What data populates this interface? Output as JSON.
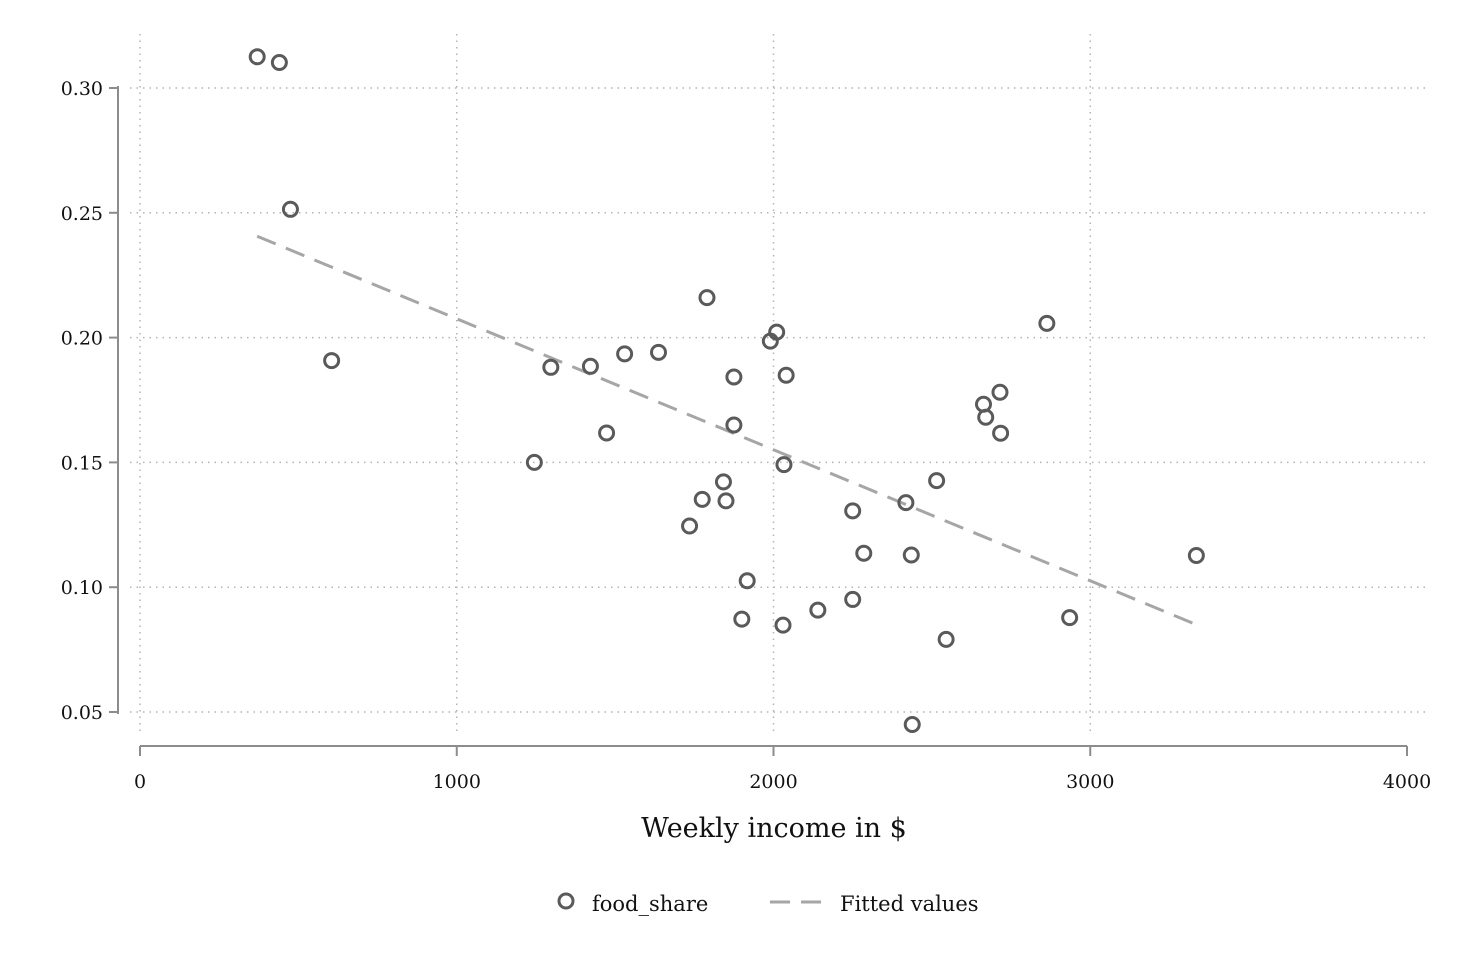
{
  "chart_data": {
    "type": "scatter",
    "title": "",
    "xlabel": "Weekly income in $",
    "ylabel": "",
    "xlim": [
      0,
      4000
    ],
    "ylim": [
      0.035,
      0.32
    ],
    "x_ticks": [
      0,
      1000,
      2000,
      3000,
      4000
    ],
    "x_tick_labels": [
      "0",
      "1000",
      "2000",
      "3000",
      "4000"
    ],
    "y_ticks": [
      0.05,
      0.1,
      0.15,
      0.2,
      0.25,
      0.3
    ],
    "y_tick_labels": [
      "0.05",
      "0.10",
      "0.15",
      "0.20",
      "0.25",
      "0.30"
    ],
    "grid": true,
    "legend_position": "bottom",
    "colors": {
      "points": "#5a5a5a",
      "fitted": "#a6a6a6",
      "axis": "#8c8c8c",
      "grid": "#b4b4b4"
    },
    "series": [
      {
        "name": "food_share",
        "kind": "scatter",
        "points": [
          [
            370,
            0.3125
          ],
          [
            440,
            0.3102
          ],
          [
            475,
            0.2514
          ],
          [
            605,
            0.1908
          ],
          [
            1245,
            0.15
          ],
          [
            1297,
            0.1881
          ],
          [
            1422,
            0.1885
          ],
          [
            1473,
            0.1618
          ],
          [
            1530,
            0.1935
          ],
          [
            1637,
            0.1941
          ],
          [
            1735,
            0.1245
          ],
          [
            1775,
            0.1352
          ],
          [
            1790,
            0.216
          ],
          [
            1842,
            0.1422
          ],
          [
            1850,
            0.1346
          ],
          [
            1875,
            0.1842
          ],
          [
            1875,
            0.165
          ],
          [
            1900,
            0.0872
          ],
          [
            1917,
            0.1026
          ],
          [
            1990,
            0.1986
          ],
          [
            2010,
            0.2022
          ],
          [
            2030,
            0.0848
          ],
          [
            2033,
            0.1491
          ],
          [
            2040,
            0.1849
          ],
          [
            2140,
            0.0908
          ],
          [
            2250,
            0.0951
          ],
          [
            2250,
            0.1306
          ],
          [
            2285,
            0.1136
          ],
          [
            2418,
            0.1339
          ],
          [
            2435,
            0.1129
          ],
          [
            2438,
            0.045
          ],
          [
            2515,
            0.1427
          ],
          [
            2545,
            0.0791
          ],
          [
            2663,
            0.1733
          ],
          [
            2670,
            0.1681
          ],
          [
            2715,
            0.1781
          ],
          [
            2717,
            0.1617
          ],
          [
            2863,
            0.2057
          ],
          [
            2935,
            0.0878
          ],
          [
            3335,
            0.1127
          ]
        ]
      },
      {
        "name": "Fitted values",
        "kind": "line",
        "style": "dashed",
        "points": [
          [
            370,
            0.2406
          ],
          [
            3335,
            0.085
          ]
        ]
      }
    ]
  }
}
